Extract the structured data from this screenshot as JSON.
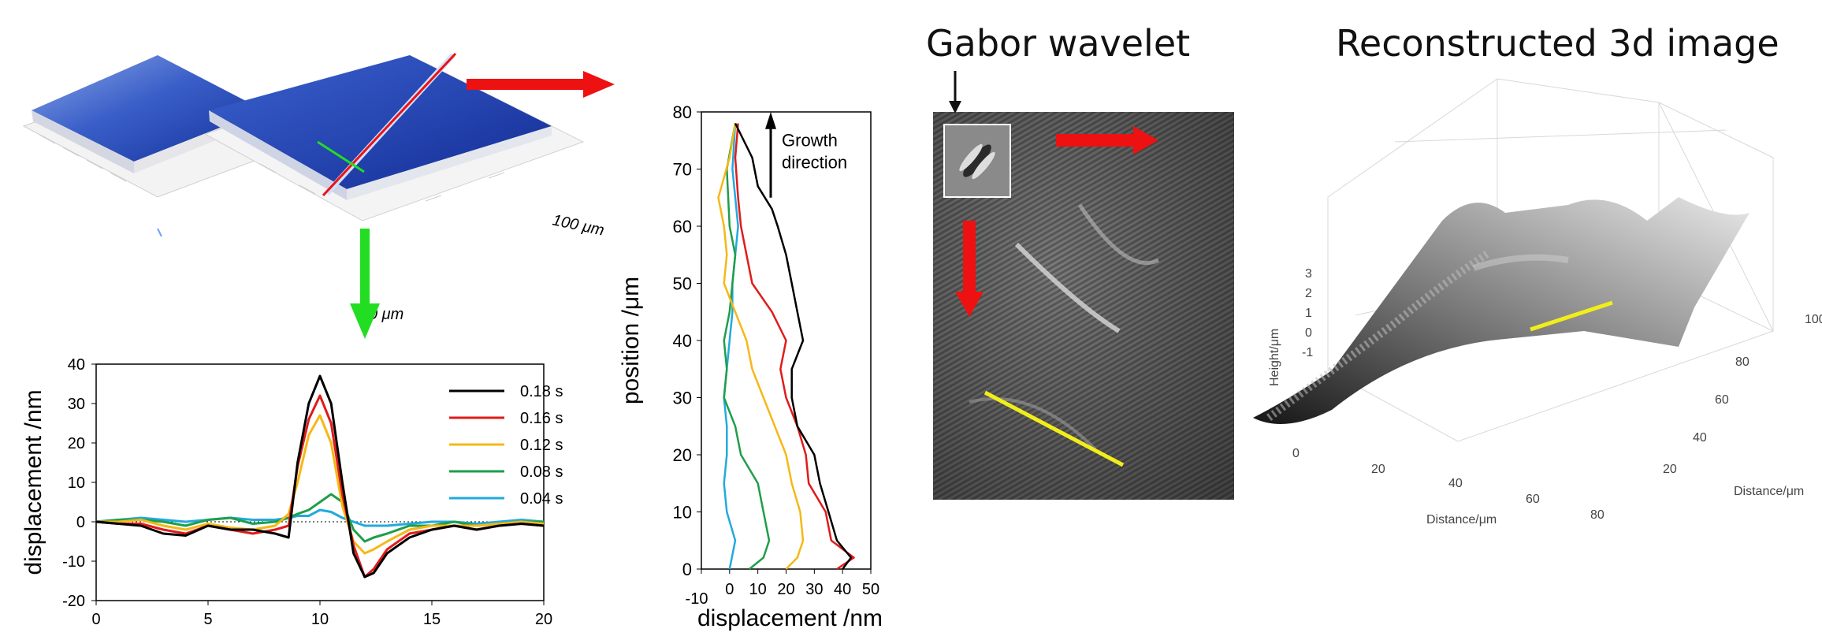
{
  "surface_panel": {
    "scale_label_far": "100 μm",
    "scale_label_near": "0 μm"
  },
  "gabor_panel": {
    "title": "Gabor wavelet"
  },
  "reconstruction_panel": {
    "title": "Reconstructed 3d image",
    "z_axis_label": "Height/μm",
    "x_axis_label": "Distance/μm",
    "y_axis_label": "Distance/μm",
    "z_ticks": [
      "3",
      "2",
      "1",
      "0",
      "-1"
    ],
    "x_ticks": [
      "0",
      "20",
      "40",
      "60",
      "80"
    ],
    "y_ticks": [
      "20",
      "40",
      "60",
      "80",
      "100"
    ]
  },
  "colors": {
    "red_arrow": "#ee1111",
    "green_arrow": "#22dd22",
    "yellow_line": "#f2ee1a",
    "surface_blue": "#1d3fae"
  },
  "chart_data": [
    {
      "type": "line",
      "title": "",
      "xlabel": "",
      "ylabel": "displacement /nm",
      "xlim": [
        0,
        20
      ],
      "ylim": [
        -20,
        40
      ],
      "x_ticks": [
        "0",
        "5",
        "10",
        "15",
        "20"
      ],
      "y_ticks": [
        "40",
        "30",
        "20",
        "10",
        "0",
        "-10",
        "-20"
      ],
      "legend_position": "top-right",
      "reference_line": 0,
      "series": [
        {
          "name": "0.18 s",
          "color": "#000000",
          "x": [
            0,
            1,
            2,
            3,
            4,
            5,
            6,
            7,
            8,
            8.6,
            9,
            9.5,
            10,
            10.5,
            11,
            11.5,
            12,
            12.4,
            13,
            14,
            15,
            16,
            17,
            18,
            19,
            20
          ],
          "y": [
            0,
            -0.5,
            -1,
            -3,
            -3.5,
            -1,
            -2,
            -2,
            -3,
            -4,
            15,
            30,
            37,
            30,
            10,
            -8,
            -14,
            -13,
            -8,
            -4,
            -2,
            -1,
            -2,
            -1,
            -0.5,
            -1
          ]
        },
        {
          "name": "0.16 s",
          "color": "#e01b1b",
          "x": [
            0,
            1,
            2,
            3,
            4,
            5,
            6,
            7,
            8,
            8.6,
            9,
            9.5,
            10,
            10.5,
            11,
            11.5,
            12,
            12.4,
            13,
            14,
            15,
            16,
            17,
            18,
            19,
            20
          ],
          "y": [
            0,
            -0.5,
            -0.5,
            -2,
            -3,
            -1,
            -2,
            -3,
            -2,
            -1,
            14,
            26,
            32,
            25,
            7,
            -6,
            -14,
            -12,
            -7,
            -3,
            -2,
            -1,
            -2,
            -1,
            -0.5,
            -1
          ]
        },
        {
          "name": "0.12 s",
          "color": "#f5b816",
          "x": [
            0,
            1,
            2,
            3,
            4,
            5,
            6,
            7,
            8,
            8.6,
            9,
            9.5,
            10,
            10.5,
            11,
            11.5,
            12,
            12.4,
            13,
            14,
            15,
            16,
            17,
            18,
            19,
            20
          ],
          "y": [
            0,
            0,
            0.5,
            -1,
            -2,
            -0.5,
            -1.5,
            -2,
            -1,
            2,
            10,
            22,
            27,
            20,
            4,
            -5,
            -8,
            -7,
            -5,
            -2,
            -1,
            -1,
            -1,
            -0.5,
            0,
            -0.5
          ]
        },
        {
          "name": "0.08 s",
          "color": "#1f9e4a",
          "x": [
            0,
            1,
            2,
            3,
            4,
            5,
            6,
            7,
            8,
            8.6,
            9,
            9.5,
            10,
            10.5,
            11,
            11.5,
            12,
            12.4,
            13,
            14,
            15,
            16,
            17,
            18,
            19,
            20
          ],
          "y": [
            0,
            0.5,
            0.5,
            0,
            -1,
            0.5,
            1,
            -0.5,
            0,
            1,
            2,
            3,
            5,
            7,
            5,
            -2,
            -5,
            -4,
            -3,
            -1,
            -1,
            0,
            -1,
            -0.5,
            0,
            0
          ]
        },
        {
          "name": "0.04 s",
          "color": "#22aadd",
          "x": [
            0,
            1,
            2,
            3,
            4,
            5,
            6,
            7,
            8,
            8.6,
            9,
            9.5,
            10,
            10.5,
            11,
            11.5,
            12,
            12.4,
            13,
            14,
            15,
            16,
            17,
            18,
            19,
            20
          ],
          "y": [
            0,
            0.5,
            1,
            0.5,
            0,
            0.5,
            1,
            0.5,
            0.5,
            1,
            1.5,
            1.5,
            3,
            2.5,
            1,
            0,
            -1,
            -1,
            -1,
            -0.5,
            0,
            0,
            -0.5,
            0,
            0.5,
            0
          ]
        }
      ]
    },
    {
      "type": "line",
      "title": "",
      "xlabel": "displacement /nm",
      "ylabel": "position /μm",
      "xlim": [
        -10,
        50
      ],
      "ylim": [
        0,
        80
      ],
      "x_ticks": [
        "-10",
        "0",
        "10",
        "20",
        "30",
        "40",
        "50"
      ],
      "y_ticks": [
        "80",
        "70",
        "60",
        "50",
        "40",
        "30",
        "20",
        "10",
        "0"
      ],
      "annotation": [
        "Growth",
        "direction"
      ],
      "series": [
        {
          "color": "#000000",
          "x": [
            40,
            43,
            38,
            35,
            32,
            30,
            24,
            22,
            22,
            26,
            24,
            22,
            20,
            17,
            15,
            10,
            8,
            2
          ],
          "y": [
            0,
            2,
            5,
            10,
            15,
            20,
            25,
            30,
            35,
            40,
            45,
            50,
            55,
            60,
            63,
            67,
            72,
            78
          ]
        },
        {
          "color": "#e01b1b",
          "x": [
            38,
            44,
            36,
            34,
            28,
            27,
            24,
            20,
            18,
            20,
            15,
            8,
            6,
            4,
            3,
            2,
            3
          ],
          "y": [
            0,
            2,
            5,
            10,
            15,
            20,
            25,
            30,
            35,
            40,
            45,
            50,
            55,
            60,
            65,
            72,
            78
          ]
        },
        {
          "color": "#f5b816",
          "x": [
            20,
            24,
            26,
            25,
            22,
            20,
            16,
            12,
            8,
            6,
            2,
            -2,
            -1,
            -2,
            -4,
            0,
            2
          ],
          "y": [
            0,
            2,
            5,
            10,
            15,
            20,
            25,
            30,
            35,
            40,
            45,
            50,
            55,
            60,
            65,
            72,
            78
          ]
        },
        {
          "color": "#1f9e4a",
          "x": [
            7,
            12,
            14,
            12,
            10,
            4,
            2,
            -2,
            -1,
            -2,
            0,
            1,
            2,
            0,
            -1,
            2
          ],
          "y": [
            0,
            2,
            5,
            10,
            15,
            20,
            25,
            30,
            35,
            40,
            45,
            50,
            55,
            60,
            70,
            78
          ]
        },
        {
          "color": "#22aadd",
          "x": [
            0,
            2,
            -1,
            -2,
            -1,
            -1,
            -2,
            0,
            1,
            1,
            2,
            3,
            2,
            1,
            2
          ],
          "y": [
            0,
            5,
            10,
            15,
            20,
            25,
            30,
            40,
            45,
            50,
            55,
            60,
            65,
            70,
            78
          ]
        }
      ]
    }
  ]
}
